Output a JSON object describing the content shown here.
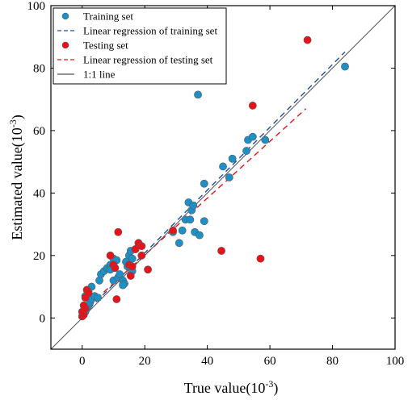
{
  "chart_data": {
    "type": "scatter",
    "title": "",
    "xlabel": "True value(10",
    "ylabel": "Estimated value(10",
    "label_superscript": "-3",
    "label_close": ")",
    "xlim": [
      -10,
      100
    ],
    "ylim": [
      -10,
      100
    ],
    "xticks": [
      0,
      20,
      40,
      60,
      80,
      100
    ],
    "yticks": [
      0,
      20,
      40,
      60,
      80,
      100
    ],
    "grid": false,
    "legend_position": "top-left",
    "series": [
      {
        "name": "Training set",
        "kind": "points",
        "color": "#1e90c8",
        "points": [
          [
            0.5,
            1.5
          ],
          [
            1,
            2
          ],
          [
            1.5,
            3
          ],
          [
            2,
            4
          ],
          [
            2.5,
            5
          ],
          [
            3,
            6
          ],
          [
            1,
            7
          ],
          [
            3,
            10
          ],
          [
            2,
            8.5
          ],
          [
            4,
            7
          ],
          [
            5,
            6.5
          ],
          [
            5.5,
            12
          ],
          [
            6,
            14
          ],
          [
            7,
            15
          ],
          [
            8,
            16
          ],
          [
            9,
            17
          ],
          [
            9,
            15.5
          ],
          [
            10,
            19
          ],
          [
            10,
            12
          ],
          [
            11,
            18.5
          ],
          [
            11.5,
            13
          ],
          [
            12,
            14
          ],
          [
            13,
            12
          ],
          [
            13.5,
            11
          ],
          [
            14,
            18
          ],
          [
            14.5,
            16.5
          ],
          [
            15,
            20
          ],
          [
            15.5,
            21.5
          ],
          [
            16,
            19
          ],
          [
            16,
            15
          ],
          [
            13,
            10.5
          ],
          [
            10,
            17
          ],
          [
            17,
            22
          ],
          [
            29,
            27.5
          ],
          [
            31,
            24
          ],
          [
            32,
            28
          ],
          [
            33,
            31.5
          ],
          [
            34,
            37
          ],
          [
            34.5,
            31.5
          ],
          [
            35,
            34.5
          ],
          [
            35.5,
            36
          ],
          [
            36,
            27.5
          ],
          [
            37,
            71.5
          ],
          [
            37.5,
            26.5
          ],
          [
            39,
            43
          ],
          [
            39,
            31
          ],
          [
            45,
            48.5
          ],
          [
            47,
            45
          ],
          [
            48,
            51
          ],
          [
            52.5,
            53.5
          ],
          [
            53,
            57
          ],
          [
            54.5,
            58
          ],
          [
            58.5,
            57
          ],
          [
            84,
            80.5
          ]
        ]
      },
      {
        "name": "Linear regression of training set",
        "kind": "line",
        "color": "#1f4e9c",
        "dash": "7,5",
        "line": [
          [
            0,
            0.7
          ],
          [
            84,
            85.2
          ]
        ]
      },
      {
        "name": "Testing set",
        "kind": "points",
        "color": "#e8131a",
        "points": [
          [
            0,
            0.5
          ],
          [
            0.5,
            1
          ],
          [
            0,
            2
          ],
          [
            1,
            3
          ],
          [
            0.5,
            4
          ],
          [
            1,
            6.5
          ],
          [
            1.5,
            9
          ],
          [
            2,
            8
          ],
          [
            9,
            20
          ],
          [
            10,
            17
          ],
          [
            10.5,
            16
          ],
          [
            11,
            6
          ],
          [
            11.5,
            27.5
          ],
          [
            15,
            17
          ],
          [
            15.5,
            13.5
          ],
          [
            16,
            16.5
          ],
          [
            17,
            22
          ],
          [
            18,
            24
          ],
          [
            19,
            23
          ],
          [
            19,
            20
          ],
          [
            21,
            15.5
          ],
          [
            29,
            28
          ],
          [
            44.5,
            21.5
          ],
          [
            54.5,
            68
          ],
          [
            57,
            19
          ],
          [
            72,
            89
          ]
        ]
      },
      {
        "name": "Linear regression of testing set",
        "kind": "line",
        "color": "#e8131a",
        "dash": "7,5",
        "line": [
          [
            0,
            2
          ],
          [
            71.5,
            67
          ]
        ]
      },
      {
        "name": "1:1 line",
        "kind": "line",
        "color": "#555555",
        "dash": "",
        "line": [
          [
            -10,
            -10
          ],
          [
            100,
            100
          ]
        ]
      }
    ]
  }
}
